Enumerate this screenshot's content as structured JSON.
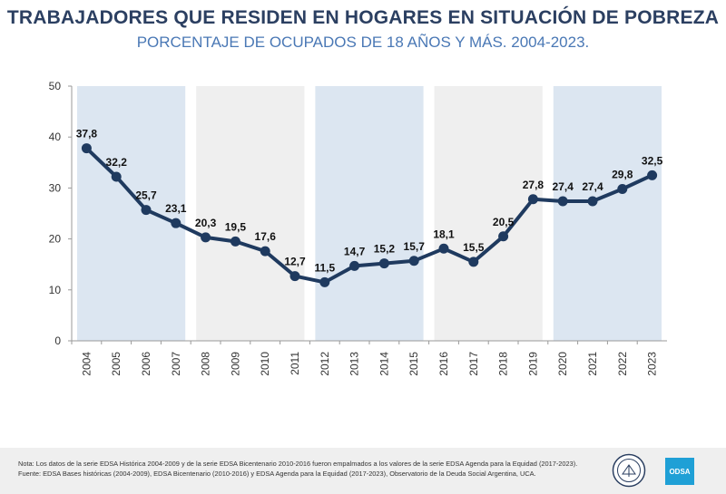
{
  "chart_data": {
    "type": "line",
    "title": "TRABAJADORES QUE RESIDEN EN HOGARES EN SITUACIÓN DE POBREZA",
    "subtitle": "PORCENTAJE DE OCUPADOS DE 18 AÑOS Y MÁS. 2004-2023.",
    "categories": [
      "2004",
      "2005",
      "2006",
      "2007",
      "2008",
      "2009",
      "2010",
      "2011",
      "2012",
      "2013",
      "2014",
      "2015",
      "2016",
      "2017",
      "2018",
      "2019",
      "2020",
      "2021",
      "2022",
      "2023"
    ],
    "series": [
      {
        "values": [
          37.8,
          32.2,
          25.7,
          23.1,
          20.3,
          19.5,
          17.6,
          12.7,
          11.5,
          14.7,
          15.2,
          15.7,
          18.1,
          15.5,
          20.5,
          27.8,
          27.4,
          27.4,
          29.8,
          32.5
        ]
      }
    ],
    "data_labels": [
      "37,8",
      "32,2",
      "25,7",
      "23,1",
      "20,3",
      "19,5",
      "17,6",
      "12,7",
      "11,5",
      "14,7",
      "15,2",
      "15,7",
      "18,1",
      "15,5",
      "20,5",
      "27,8",
      "27,4",
      "27,4",
      "29,8",
      "32,5"
    ],
    "ylim": [
      0,
      50
    ],
    "yticks": [
      0,
      10,
      20,
      30,
      40,
      50
    ],
    "shaded_periods": [
      {
        "start": "2004",
        "end": "2007",
        "color": "#dce6f1"
      },
      {
        "start": "2008",
        "end": "2011",
        "color": "#efefef"
      },
      {
        "start": "2012",
        "end": "2015",
        "color": "#dce6f1"
      },
      {
        "start": "2016",
        "end": "2019",
        "color": "#efefef"
      },
      {
        "start": "2020",
        "end": "2023",
        "color": "#dce6f1"
      }
    ],
    "line_color": "#1f3a5f",
    "grid": false,
    "legend": "none"
  },
  "footer": {
    "note": "Nota: Los datos de la serie EDSA Histórica 2004-2009 y de la serie EDSA Bicentenario 2010-2016 fueron empalmados a los valores de la serie EDSA Agenda para la Equidad (2017-2023).",
    "source": "Fuente: EDSA Bases históricas (2004-2009), EDSA Bicentenario (2010-2016) y EDSA Agenda para la Equidad (2017-2023), Observatorio de la Deuda Social Argentina, UCA.",
    "logo_text": "ODSA"
  }
}
